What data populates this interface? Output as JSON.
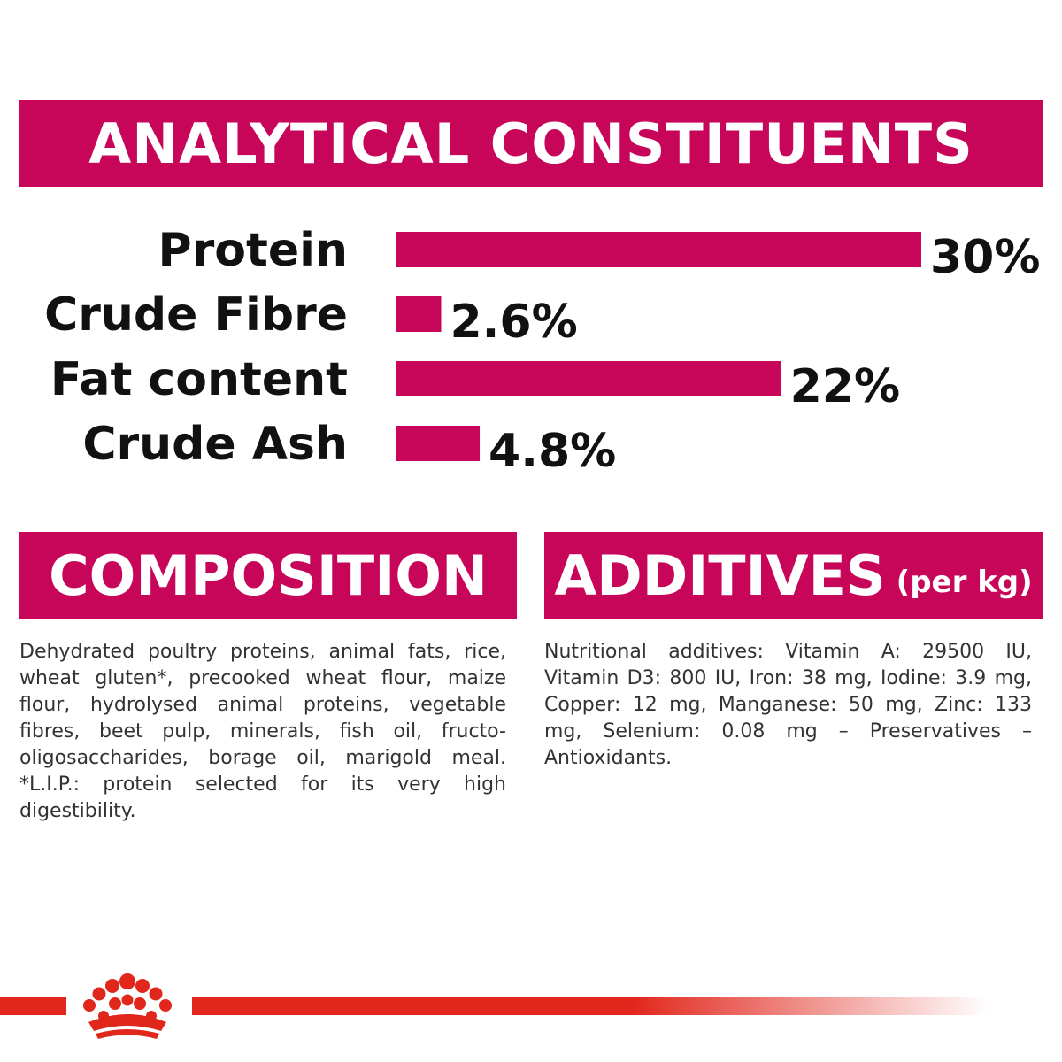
{
  "headers": {
    "analytical": "ANALYTICAL CONSTITUENTS",
    "composition": "COMPOSITION",
    "additives": "ADDITIVES",
    "additives_sub": "(per kg)"
  },
  "chart_data": {
    "type": "bar",
    "orientation": "horizontal",
    "categories": [
      "Protein",
      "Crude Fibre",
      "Fat content",
      "Crude Ash"
    ],
    "values": [
      30,
      2.6,
      22,
      4.8
    ],
    "value_labels": [
      "30%",
      "2.6%",
      "22%",
      "4.8%"
    ],
    "unit": "%",
    "xlim": [
      0,
      30
    ],
    "grid": false,
    "bar_color": "#c7065a"
  },
  "composition_text": "Dehydrated poultry proteins, animal fats, rice, wheat gluten*, precooked wheat flour, maize flour, hydrolysed animal proteins, vegetable fibres, beet pulp, minerals, fish oil, fructo-oligosaccharides, borage oil, marigold meal. *L.I.P.: protein selected for its very high digestibility.",
  "additives_text": "Nutritional additives: Vitamin A: 29500 IU, Vitamin D3: 800 IU, Iron: 38 mg, Iodine: 3.9 mg, Copper: 12 mg, Manganese: 50 mg, Zinc: 133 mg, Selenium: 0.08 mg – Preservatives – Antioxidants.",
  "colors": {
    "brand_magenta": "#c7065a",
    "logo_red": "#e1261c"
  },
  "logo": {
    "icon": "crown-icon"
  }
}
